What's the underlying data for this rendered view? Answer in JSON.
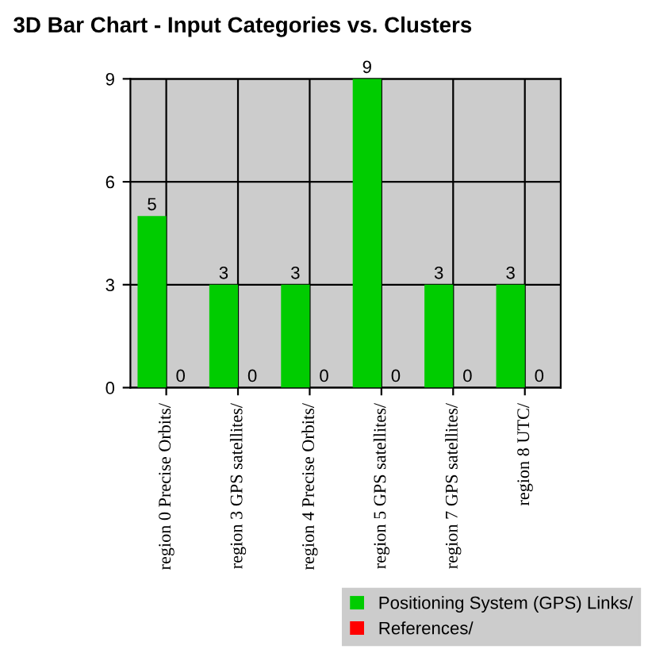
{
  "chart_data": {
    "type": "bar",
    "title": "3D Bar Chart - Input Categories vs. Clusters",
    "categories": [
      "region 0 Precise Orbits/",
      "region 3 GPS satellites/",
      "region 4 Precise Orbits/",
      "region 5 GPS satellites/",
      "region 7 GPS satellites/",
      "region 8 UTC/"
    ],
    "series": [
      {
        "name": "Positioning System (GPS) Links/",
        "color": "#00cc00",
        "values": [
          5,
          3,
          3,
          9,
          3,
          3
        ]
      },
      {
        "name": "References/",
        "color": "#ff0000",
        "values": [
          0,
          0,
          0,
          0,
          0,
          0
        ]
      }
    ],
    "ylim": [
      0,
      9
    ],
    "yticks": [
      0,
      3,
      6,
      9
    ],
    "grid": true,
    "legend": "bottom right",
    "data_labels": true
  }
}
